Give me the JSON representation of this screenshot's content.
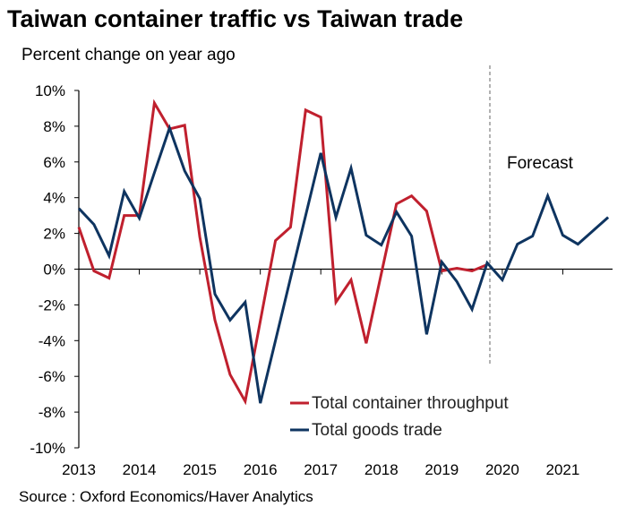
{
  "chart_data": {
    "type": "line",
    "title": "Taiwan container traffic vs Taiwan trade",
    "subtitle": "Percent change on year ago",
    "source": "Source : Oxford Economics/Haver Analytics",
    "xlabel": "",
    "ylabel": "",
    "x_tick_labels": [
      "2013",
      "2014",
      "2015",
      "2016",
      "2017",
      "2018",
      "2019",
      "2020",
      "2021"
    ],
    "x_start": 2013,
    "x_step": 0.25,
    "y_tick_labels": [
      "10%",
      "8%",
      "6%",
      "4%",
      "2%",
      "0%",
      "-2%",
      "-4%",
      "-6%",
      "-8%",
      "-10%"
    ],
    "ylim": [
      -10,
      10
    ],
    "xlim": [
      2013,
      2022
    ],
    "annotation": "Forecast",
    "forecast_start": 2019.75,
    "legend_position": "bottom-right",
    "series": [
      {
        "name": "Total container throughput",
        "color": "#c0202e",
        "values": [
          2.35,
          -0.1,
          -0.5,
          3.0,
          3.0,
          9.3,
          7.85,
          8.05,
          1.8,
          -2.85,
          -5.9,
          -7.4,
          -2.9,
          1.6,
          2.35,
          8.9,
          8.5,
          -1.85,
          -0.6,
          -4.15,
          -0.25,
          3.65,
          4.1,
          3.25,
          -0.1,
          0.05,
          -0.1,
          0.25
        ]
      },
      {
        "name": "Total goods trade",
        "color": "#0e3460",
        "values": [
          3.4,
          2.5,
          0.75,
          4.35,
          2.85,
          5.4,
          7.9,
          5.5,
          3.95,
          -1.4,
          -2.85,
          -1.85,
          -7.5,
          -4.0,
          -0.5,
          3.0,
          6.5,
          2.9,
          5.65,
          1.9,
          1.35,
          3.2,
          1.85,
          -3.65,
          0.4,
          -0.7,
          -2.25,
          0.35,
          -0.6,
          1.4,
          1.85,
          4.1,
          1.9,
          1.4,
          2.15,
          2.9
        ]
      }
    ]
  }
}
